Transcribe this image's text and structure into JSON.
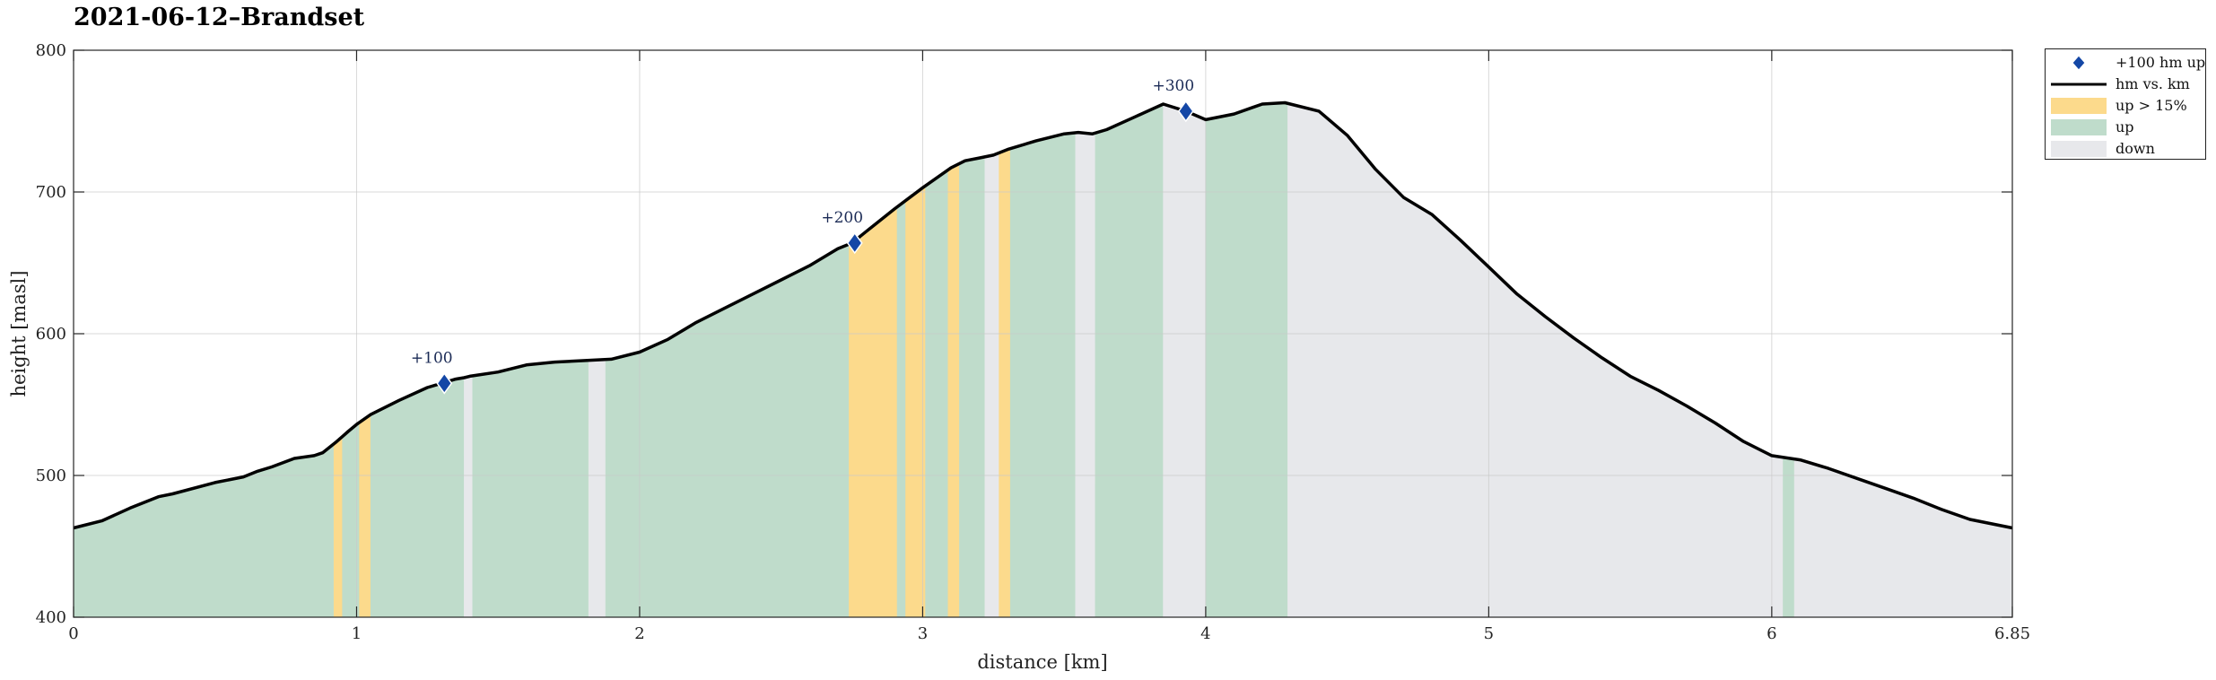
{
  "title": "2021-06-12–Brandset",
  "chart_data": {
    "type": "area",
    "title": "2021-06-12–Brandset",
    "xlabel": "distance [km]",
    "ylabel": "height [masl]",
    "xlim": [
      0,
      6.85
    ],
    "ylim": [
      400,
      800
    ],
    "xticks": [
      0,
      1,
      2,
      3,
      4,
      5,
      6,
      6.85
    ],
    "xtick_labels": [
      "0",
      "1",
      "2",
      "3",
      "4",
      "5",
      "6",
      "6.85"
    ],
    "yticks": [
      400,
      500,
      600,
      700,
      800
    ],
    "ytick_labels": [
      "400",
      "500",
      "600",
      "700",
      "800"
    ],
    "grid": true,
    "legend_position": "outside top-right",
    "colors": {
      "steep": "#fcda8c",
      "up": "#bfdccb",
      "down": "#e7e8eb",
      "line": "#000000",
      "marker": "#1447a6"
    },
    "legend": [
      {
        "label": "+100 hm up",
        "kind": "marker"
      },
      {
        "label": "hm vs. km",
        "kind": "line"
      },
      {
        "label": "up > 15%",
        "kind": "steep"
      },
      {
        "label": "up",
        "kind": "up"
      },
      {
        "label": "down",
        "kind": "down"
      }
    ],
    "profile": {
      "x": [
        0,
        0.1,
        0.2,
        0.3,
        0.35,
        0.5,
        0.6,
        0.65,
        0.7,
        0.78,
        0.85,
        0.88,
        0.93,
        0.97,
        1.0,
        1.05,
        1.1,
        1.15,
        1.25,
        1.3,
        1.35,
        1.38,
        1.4,
        1.5,
        1.6,
        1.7,
        1.8,
        1.9,
        2.0,
        2.1,
        2.2,
        2.3,
        2.4,
        2.5,
        2.6,
        2.7,
        2.75,
        2.8,
        2.9,
        3.0,
        3.1,
        3.15,
        3.2,
        3.25,
        3.3,
        3.4,
        3.5,
        3.55,
        3.6,
        3.65,
        3.75,
        3.85,
        3.93,
        4.0,
        4.1,
        4.2,
        4.28,
        4.4,
        4.5,
        4.6,
        4.7,
        4.8,
        4.9,
        5.0,
        5.1,
        5.2,
        5.3,
        5.4,
        5.5,
        5.6,
        5.7,
        5.8,
        5.9,
        6.0,
        6.1,
        6.2,
        6.3,
        6.4,
        6.5,
        6.6,
        6.7,
        6.85
      ],
      "y": [
        463,
        468,
        477,
        485,
        487,
        495,
        499,
        503,
        506,
        512,
        514,
        516,
        524,
        531,
        536,
        543,
        548,
        553,
        562,
        565,
        568,
        569,
        570,
        573,
        578,
        580,
        581,
        582,
        587,
        596,
        608,
        618,
        628,
        638,
        648,
        660,
        664,
        672,
        688,
        703,
        717,
        722,
        724,
        726,
        730,
        736,
        741,
        742,
        741,
        744,
        753,
        762,
        757,
        751,
        755,
        762,
        763,
        757,
        740,
        716,
        696,
        684,
        666,
        647,
        628,
        612,
        597,
        583,
        570,
        560,
        549,
        537,
        524,
        514,
        511,
        505,
        498,
        491,
        484,
        476,
        469,
        463
      ]
    },
    "segments": [
      {
        "x0": 0.0,
        "x1": 0.92,
        "type": "up"
      },
      {
        "x0": 0.92,
        "x1": 0.95,
        "type": "steep"
      },
      {
        "x0": 0.95,
        "x1": 1.01,
        "type": "up"
      },
      {
        "x0": 1.01,
        "x1": 1.05,
        "type": "steep"
      },
      {
        "x0": 1.05,
        "x1": 1.38,
        "type": "up"
      },
      {
        "x0": 1.38,
        "x1": 1.41,
        "type": "down"
      },
      {
        "x0": 1.41,
        "x1": 1.82,
        "type": "up"
      },
      {
        "x0": 1.82,
        "x1": 1.88,
        "type": "down"
      },
      {
        "x0": 1.88,
        "x1": 2.74,
        "type": "up"
      },
      {
        "x0": 2.74,
        "x1": 2.91,
        "type": "steep"
      },
      {
        "x0": 2.91,
        "x1": 2.94,
        "type": "up"
      },
      {
        "x0": 2.94,
        "x1": 3.01,
        "type": "steep"
      },
      {
        "x0": 3.01,
        "x1": 3.09,
        "type": "up"
      },
      {
        "x0": 3.09,
        "x1": 3.13,
        "type": "steep"
      },
      {
        "x0": 3.13,
        "x1": 3.22,
        "type": "up"
      },
      {
        "x0": 3.22,
        "x1": 3.27,
        "type": "down"
      },
      {
        "x0": 3.27,
        "x1": 3.31,
        "type": "steep"
      },
      {
        "x0": 3.31,
        "x1": 3.54,
        "type": "up"
      },
      {
        "x0": 3.54,
        "x1": 3.61,
        "type": "down"
      },
      {
        "x0": 3.61,
        "x1": 3.85,
        "type": "up"
      },
      {
        "x0": 3.85,
        "x1": 4.0,
        "type": "down"
      },
      {
        "x0": 4.0,
        "x1": 4.29,
        "type": "up"
      },
      {
        "x0": 4.29,
        "x1": 6.04,
        "type": "down"
      },
      {
        "x0": 6.04,
        "x1": 6.08,
        "type": "up"
      },
      {
        "x0": 6.08,
        "x1": 6.85,
        "type": "down"
      }
    ],
    "markers": [
      {
        "x": 1.31,
        "y": 565,
        "label": "+100"
      },
      {
        "x": 2.76,
        "y": 664,
        "label": "+200"
      },
      {
        "x": 3.93,
        "y": 757,
        "label": "+300"
      }
    ]
  }
}
